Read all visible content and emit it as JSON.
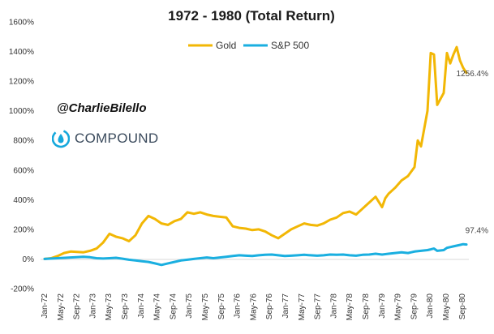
{
  "chart_data": {
    "type": "line",
    "title": "1972 - 1980 (Total Return)",
    "xlabel": "",
    "ylabel": "",
    "ylim": [
      -200,
      1600
    ],
    "yticks": [
      -200,
      0,
      200,
      400,
      600,
      800,
      1000,
      1200,
      1400,
      1600
    ],
    "ytick_labels": [
      "-200%",
      "0%",
      "200%",
      "400%",
      "600%",
      "800%",
      "1000%",
      "1200%",
      "1400%",
      "1600%"
    ],
    "xtick_labels": [
      "Jan-72",
      "May-72",
      "Sep-72",
      "Jan-73",
      "May-73",
      "Sep-73",
      "Jan-74",
      "May-74",
      "Sep-74",
      "Jan-75",
      "May-75",
      "Sep-75",
      "Jan-76",
      "May-76",
      "Sep-76",
      "Jan-77",
      "May-77",
      "Sep-77",
      "Jan-78",
      "May-78",
      "Sep-78",
      "Jan-79",
      "May-79",
      "Sep-79",
      "Jan-80",
      "May-80",
      "Sep-80"
    ],
    "x_months": 108,
    "legend_position": "top-center",
    "series": [
      {
        "name": "Gold",
        "color": "#F2B705",
        "points": [
          [
            0,
            0
          ],
          [
            2,
            5
          ],
          [
            4,
            20
          ],
          [
            6,
            40
          ],
          [
            8,
            50
          ],
          [
            10,
            48
          ],
          [
            12,
            45
          ],
          [
            14,
            55
          ],
          [
            16,
            70
          ],
          [
            18,
            110
          ],
          [
            20,
            170
          ],
          [
            22,
            150
          ],
          [
            24,
            140
          ],
          [
            26,
            120
          ],
          [
            28,
            160
          ],
          [
            30,
            240
          ],
          [
            32,
            290
          ],
          [
            34,
            270
          ],
          [
            36,
            240
          ],
          [
            38,
            230
          ],
          [
            40,
            255
          ],
          [
            42,
            270
          ],
          [
            44,
            315
          ],
          [
            46,
            305
          ],
          [
            48,
            315
          ],
          [
            50,
            300
          ],
          [
            52,
            290
          ],
          [
            54,
            285
          ],
          [
            56,
            280
          ],
          [
            58,
            220
          ],
          [
            60,
            210
          ],
          [
            62,
            205
          ],
          [
            64,
            195
          ],
          [
            66,
            200
          ],
          [
            68,
            185
          ],
          [
            70,
            160
          ],
          [
            72,
            140
          ],
          [
            74,
            170
          ],
          [
            76,
            200
          ],
          [
            78,
            220
          ],
          [
            80,
            240
          ],
          [
            82,
            230
          ],
          [
            84,
            225
          ],
          [
            86,
            240
          ],
          [
            88,
            265
          ],
          [
            90,
            280
          ],
          [
            92,
            310
          ],
          [
            94,
            320
          ],
          [
            96,
            300
          ],
          [
            98,
            340
          ],
          [
            100,
            380
          ],
          [
            102,
            420
          ],
          [
            104,
            350
          ],
          [
            105,
            410
          ],
          [
            106,
            440
          ],
          [
            108,
            480
          ],
          [
            110,
            530
          ],
          [
            112,
            560
          ],
          [
            114,
            620
          ],
          [
            115,
            800
          ],
          [
            116,
            760
          ],
          [
            118,
            1000
          ],
          [
            119,
            1390
          ],
          [
            120,
            1380
          ],
          [
            121,
            1040
          ],
          [
            123,
            1120
          ],
          [
            124,
            1390
          ],
          [
            125,
            1320
          ],
          [
            126,
            1380
          ],
          [
            127,
            1430
          ],
          [
            128,
            1340
          ],
          [
            129,
            1290
          ],
          [
            130,
            1256.4
          ]
        ],
        "end_label": "1256.4%"
      },
      {
        "name": "S&P 500",
        "color": "#1AAFE0",
        "points": [
          [
            0,
            0
          ],
          [
            4,
            5
          ],
          [
            8,
            10
          ],
          [
            12,
            15
          ],
          [
            14,
            12
          ],
          [
            16,
            5
          ],
          [
            18,
            3
          ],
          [
            20,
            5
          ],
          [
            22,
            8
          ],
          [
            24,
            2
          ],
          [
            26,
            -5
          ],
          [
            28,
            -10
          ],
          [
            30,
            -15
          ],
          [
            32,
            -20
          ],
          [
            34,
            -30
          ],
          [
            36,
            -40
          ],
          [
            38,
            -30
          ],
          [
            40,
            -20
          ],
          [
            42,
            -10
          ],
          [
            44,
            -5
          ],
          [
            46,
            0
          ],
          [
            48,
            5
          ],
          [
            50,
            10
          ],
          [
            52,
            5
          ],
          [
            54,
            10
          ],
          [
            56,
            15
          ],
          [
            58,
            20
          ],
          [
            60,
            25
          ],
          [
            62,
            22
          ],
          [
            64,
            20
          ],
          [
            66,
            25
          ],
          [
            68,
            28
          ],
          [
            70,
            30
          ],
          [
            72,
            25
          ],
          [
            74,
            20
          ],
          [
            76,
            22
          ],
          [
            78,
            25
          ],
          [
            80,
            28
          ],
          [
            82,
            25
          ],
          [
            84,
            22
          ],
          [
            86,
            25
          ],
          [
            88,
            30
          ],
          [
            90,
            28
          ],
          [
            92,
            30
          ],
          [
            94,
            25
          ],
          [
            96,
            22
          ],
          [
            98,
            28
          ],
          [
            100,
            30
          ],
          [
            102,
            35
          ],
          [
            104,
            30
          ],
          [
            106,
            35
          ],
          [
            108,
            40
          ],
          [
            110,
            45
          ],
          [
            112,
            40
          ],
          [
            114,
            50
          ],
          [
            116,
            55
          ],
          [
            118,
            60
          ],
          [
            119,
            65
          ],
          [
            120,
            70
          ],
          [
            121,
            55
          ],
          [
            123,
            60
          ],
          [
            124,
            75
          ],
          [
            125,
            80
          ],
          [
            126,
            85
          ],
          [
            127,
            90
          ],
          [
            128,
            95
          ],
          [
            129,
            100
          ],
          [
            130,
            97.4
          ]
        ],
        "end_label": "97.4%"
      }
    ],
    "annotations": {
      "handle": "@CharlieBilello",
      "brand": "COMPOUND"
    }
  }
}
